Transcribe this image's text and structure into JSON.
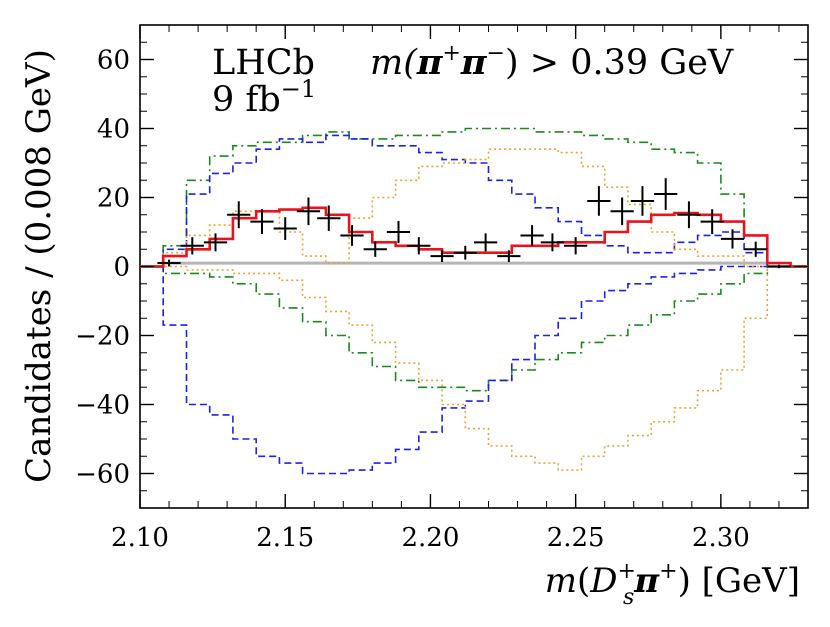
{
  "chart_data": {
    "type": "histogram",
    "title": "",
    "xlabel": "m(D_s^+ π^+) [GeV]",
    "ylabel": "Candidates / (0.008 GeV)",
    "xlim": [
      2.1,
      2.33
    ],
    "ylim": [
      -70,
      70
    ],
    "grid": false,
    "bin_width": 0.008,
    "x_ticks": [
      2.1,
      2.15,
      2.2,
      2.25,
      2.3
    ],
    "x_tick_labels": [
      "2.10",
      "2.15",
      "2.20",
      "2.25",
      "2.30"
    ],
    "y_ticks": [
      -60,
      -40,
      -20,
      0,
      20,
      40,
      60
    ],
    "y_tick_labels": [
      "−60",
      "−40",
      "−20",
      "0",
      "20",
      "40",
      "60"
    ],
    "annotations": {
      "experiment": "LHCb",
      "luminosity": "9 fb",
      "luminosity_exp": "−1",
      "cut_prefix": "m(",
      "cut_pi1": "π",
      "cut_sup1": "+",
      "cut_pi2": "π",
      "cut_sup2": "−",
      "cut_suffix": ") > 0.39 GeV"
    },
    "axis_label_parts": {
      "x_m": "m",
      "x_open": "(",
      "x_D": "D",
      "x_sub": "s",
      "x_sup": "+",
      "x_pi": "π",
      "x_pisup": "+",
      "x_close": ")",
      "x_unit": " [GeV]"
    },
    "bin_edges": [
      2.1,
      2.108,
      2.116,
      2.124,
      2.132,
      2.14,
      2.148,
      2.156,
      2.164,
      2.172,
      2.18,
      2.188,
      2.196,
      2.204,
      2.212,
      2.22,
      2.228,
      2.236,
      2.244,
      2.252,
      2.26,
      2.268,
      2.276,
      2.284,
      2.292,
      2.3,
      2.308,
      2.316,
      2.324,
      2.33
    ],
    "data_points": {
      "x": [
        2.11,
        2.118,
        2.126,
        2.134,
        2.142,
        2.15,
        2.158,
        2.165,
        2.173,
        2.181,
        2.189,
        2.196,
        2.204,
        2.212,
        2.219,
        2.227,
        2.235,
        2.242,
        2.25,
        2.258,
        2.266,
        2.273,
        2.281,
        2.289,
        2.297,
        2.304,
        2.312,
        2.32
      ],
      "y": [
        1,
        6,
        7,
        15,
        13,
        11,
        16,
        14,
        9,
        5,
        10,
        6,
        3,
        4,
        7,
        3,
        9,
        7,
        6,
        19,
        16,
        19,
        21,
        15,
        13,
        8,
        5,
        0
      ],
      "yerr": [
        1,
        2.5,
        2.6,
        3.9,
        3.6,
        3.3,
        4,
        3.7,
        3,
        2.2,
        3.2,
        2.5,
        1.7,
        2,
        2.6,
        1.7,
        3,
        2.6,
        2.5,
        4.3,
        4,
        4.3,
        4.6,
        3.9,
        3.6,
        2.8,
        2.2,
        0.5
      ],
      "xerr": 0.004,
      "style": "black crosses"
    },
    "series": [
      {
        "name": "total fit",
        "color": "#e8141b",
        "style": "solid",
        "values": [
          0,
          3,
          5,
          8,
          14,
          16,
          16.5,
          17,
          15,
          10,
          7,
          6,
          5,
          4,
          4,
          4,
          6,
          6,
          7,
          7,
          10,
          13,
          15,
          15.5,
          15,
          13,
          9,
          1,
          0
        ]
      },
      {
        "name": "green dash-dot upper",
        "color": "#1b8a1b",
        "style": "dashdot",
        "values": [
          0,
          6,
          25,
          32,
          35,
          36,
          36,
          38,
          39,
          37,
          37,
          38,
          38,
          39,
          40,
          40,
          40,
          39,
          39,
          38,
          37,
          36,
          34,
          33,
          30,
          21,
          9,
          0,
          0
        ]
      },
      {
        "name": "green dash-dot lower",
        "color": "#1b8a1b",
        "style": "dashdot",
        "values": [
          0,
          -2,
          -2,
          -3,
          -5,
          -8,
          -12,
          -16,
          -20,
          -25,
          -29,
          -33,
          -35,
          -35,
          -36,
          -33,
          -30,
          -27,
          -25,
          -22,
          -20,
          -17,
          -14,
          -10,
          -8,
          -5,
          -2,
          0,
          0
        ]
      },
      {
        "name": "blue dashed upper",
        "color": "#1a22e6",
        "style": "dashed",
        "values": [
          0,
          5,
          21,
          27,
          30,
          34,
          37,
          36,
          38,
          37,
          35,
          35,
          33,
          31,
          30,
          25,
          21,
          17,
          13,
          9,
          6,
          4,
          4,
          7,
          9,
          10,
          4,
          0,
          0
        ]
      },
      {
        "name": "blue dashed lower",
        "color": "#1a22e6",
        "style": "dashed",
        "values": [
          0,
          -17,
          -40,
          -43,
          -50,
          -55,
          -57,
          -60,
          -60,
          -59,
          -57,
          -53,
          -48,
          -41,
          -39,
          -33,
          -27,
          -20,
          -15,
          -10,
          -7,
          -5,
          -3,
          -2,
          -1,
          0,
          0,
          0,
          0
        ]
      },
      {
        "name": "orange dotted upper",
        "color": "#f0a030",
        "style": "dotted",
        "values": [
          0,
          4,
          9,
          12,
          16,
          16,
          10,
          3,
          1,
          14,
          20,
          25,
          29,
          30,
          31,
          34,
          34,
          34,
          33,
          29,
          23,
          18,
          10,
          5,
          3,
          3,
          0,
          0,
          0
        ]
      },
      {
        "name": "orange dotted lower",
        "color": "#f0a030",
        "style": "dotted",
        "values": [
          0,
          0,
          -1,
          -1,
          -2,
          -2,
          -4,
          -9,
          -13,
          -17,
          -22,
          -28,
          -33,
          -40,
          -47,
          -52,
          -55,
          -57,
          -59,
          -55,
          -52,
          -49,
          -45,
          -41,
          -36,
          -30,
          -15,
          0,
          0
        ]
      },
      {
        "name": "grey background",
        "color": "#b5b5b5",
        "style": "solid",
        "values": [
          0,
          1,
          1,
          1,
          1,
          1,
          1,
          1,
          1,
          1,
          1,
          1,
          1,
          1,
          1,
          1,
          1,
          1,
          1,
          1,
          1,
          1,
          1,
          1,
          1,
          1,
          1,
          0,
          0
        ]
      }
    ]
  }
}
